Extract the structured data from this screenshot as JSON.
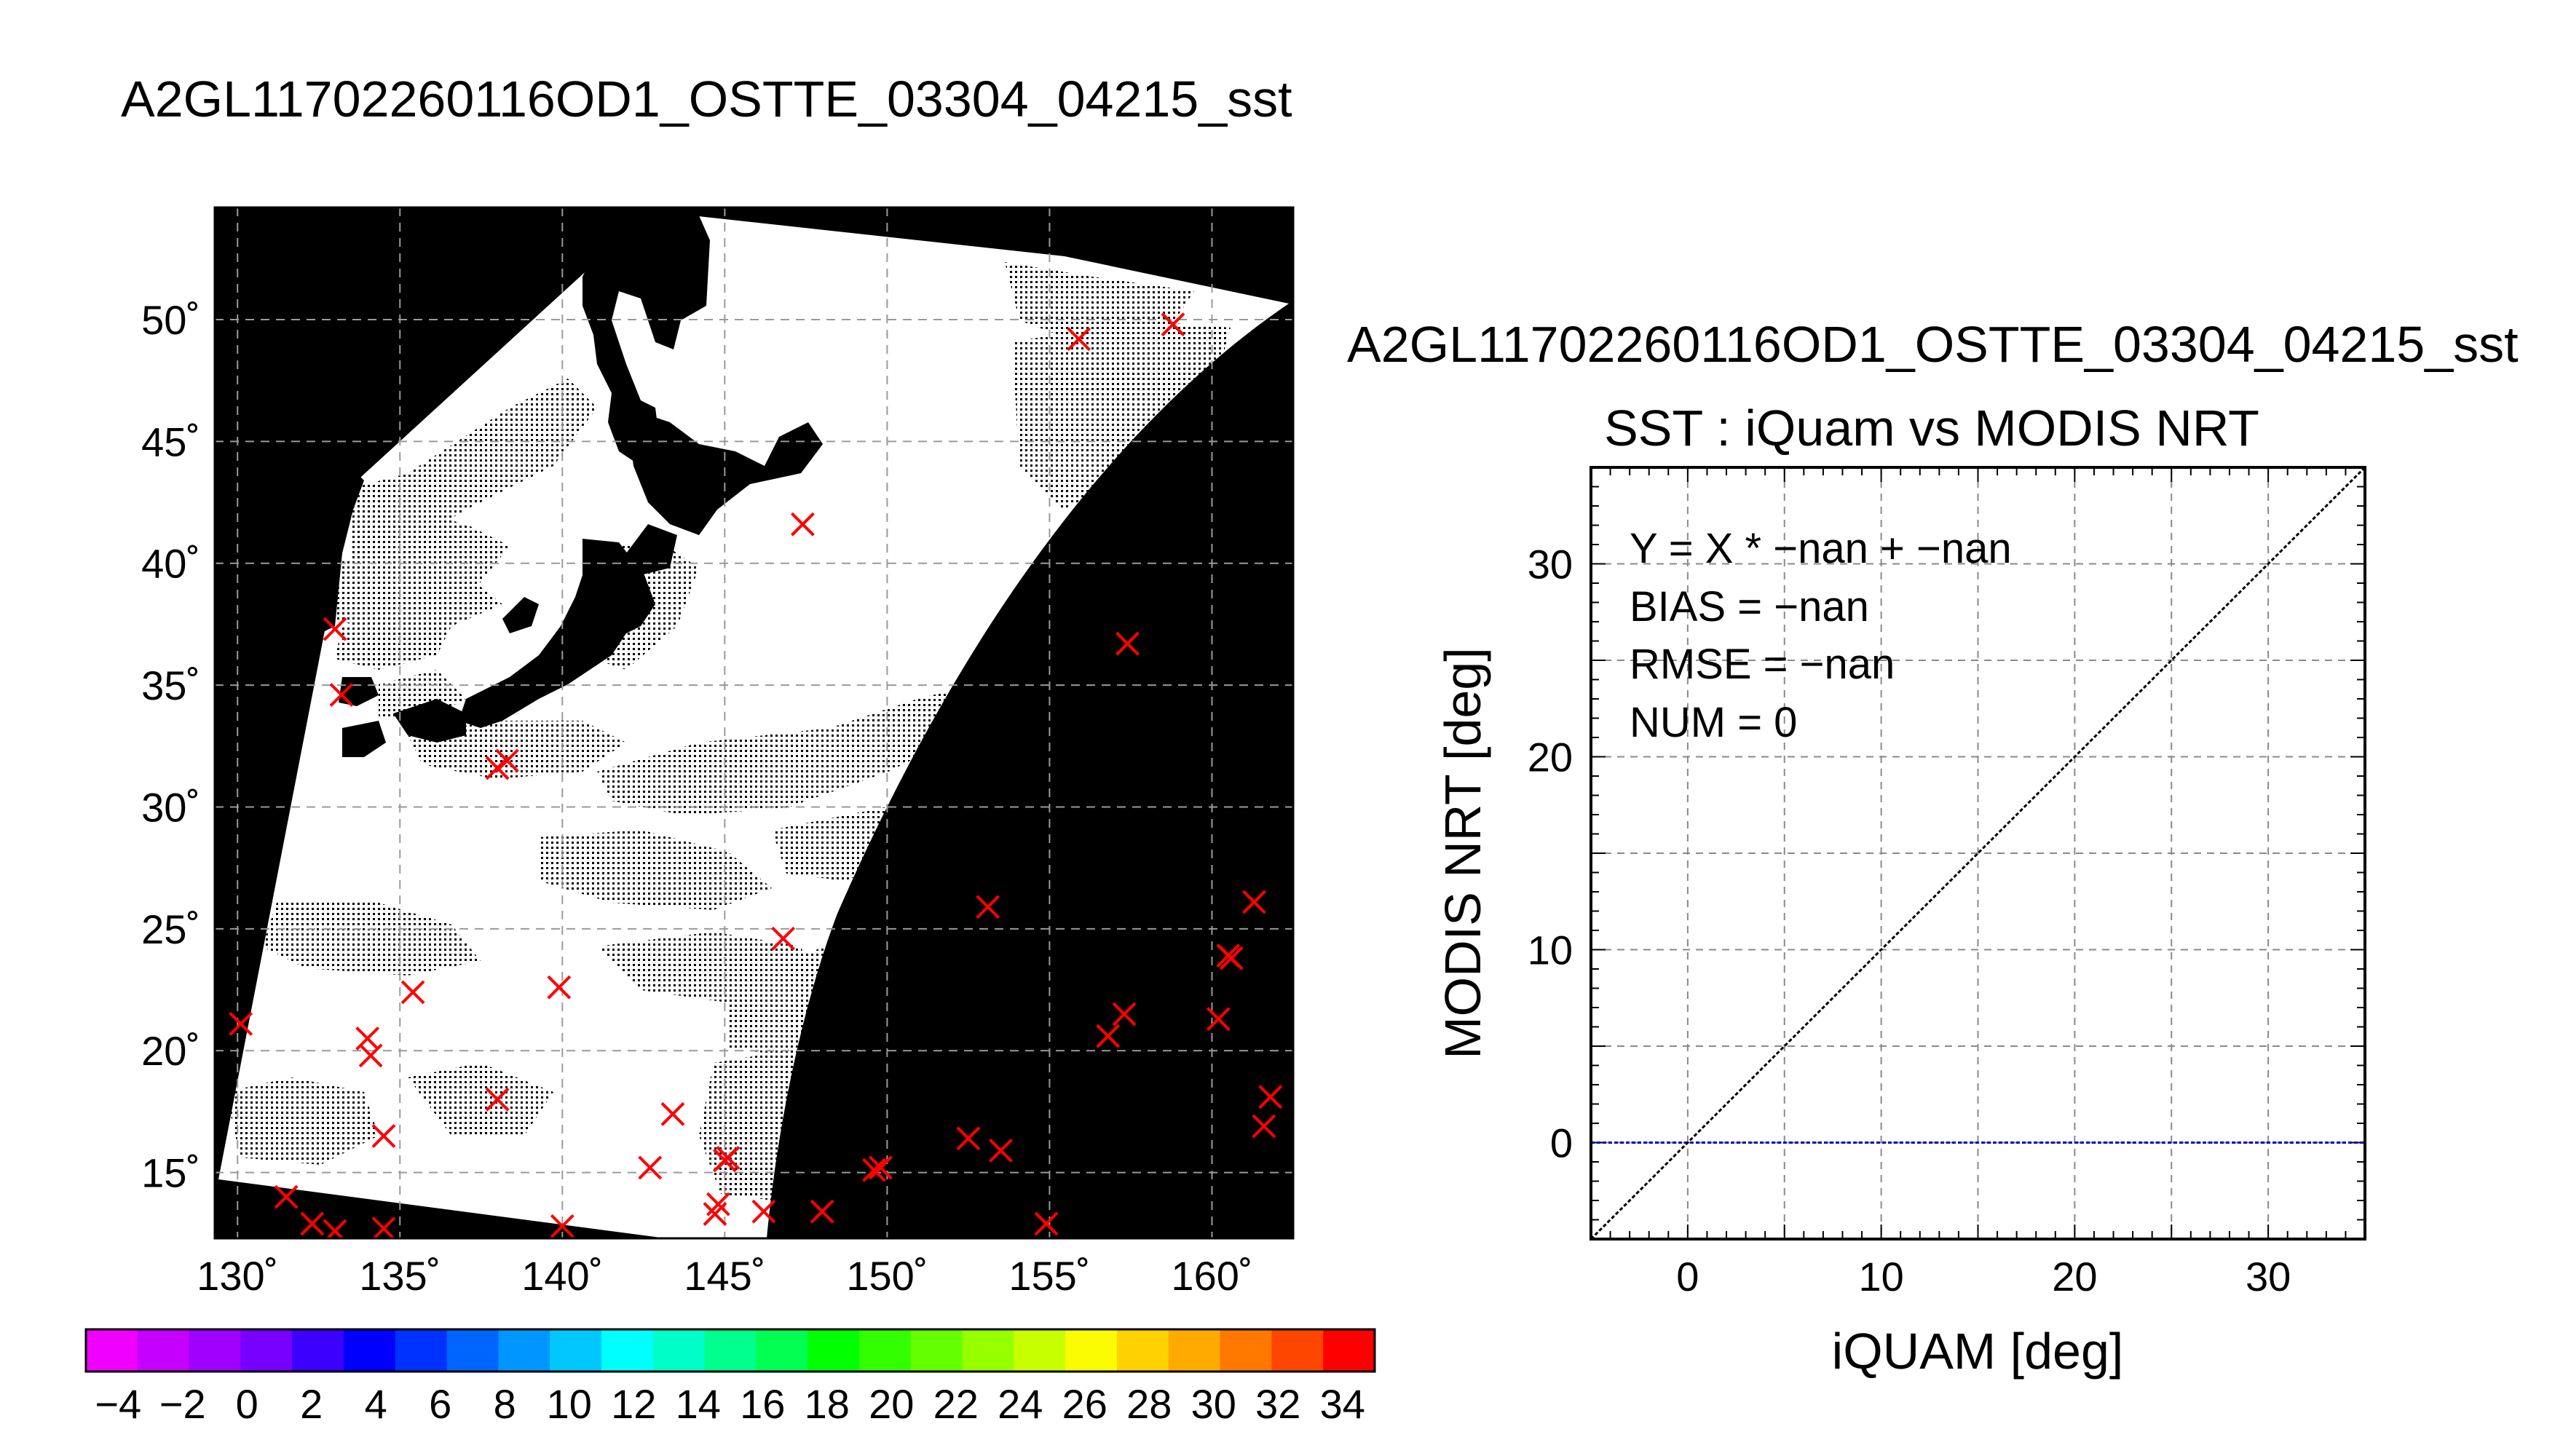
{
  "figure": {
    "title": "A2GL11702260116OD1_OSTTE_03304_04215_sst"
  },
  "chart_data": [
    {
      "type": "heatmap",
      "title": "A2GL11702260116OD1_OSTTE_03304_04215_sst",
      "x_ticks": [
        "130˚",
        "135˚",
        "140˚",
        "145˚",
        "150˚",
        "155˚",
        "160˚"
      ],
      "y_ticks": [
        "15˚",
        "20˚",
        "25˚",
        "30˚",
        "35˚",
        "40˚",
        "45˚",
        "50˚"
      ],
      "xlim": [
        129.3,
        162.5
      ],
      "ylim": [
        12.3,
        54.6
      ],
      "grid": true,
      "colorbar": {
        "ticks": [
          "−4",
          "−2",
          "0",
          "2",
          "4",
          "6",
          "8",
          "10",
          "12",
          "14",
          "16",
          "18",
          "20",
          "22",
          "24",
          "26",
          "28",
          "30",
          "32",
          "34"
        ],
        "range": [
          -5,
          35
        ],
        "colors": [
          "#f000ff",
          "#c600ff",
          "#a000ff",
          "#7800ff",
          "#3c00ff",
          "#0000ff",
          "#0032ff",
          "#0064ff",
          "#0096ff",
          "#00c8ff",
          "#00ffff",
          "#00ffc8",
          "#00ff8c",
          "#00ff50",
          "#00ff00",
          "#32ff00",
          "#64ff00",
          "#96ff00",
          "#c8ff00",
          "#fafa00",
          "#ffd200",
          "#ffaa00",
          "#ff7800",
          "#ff4600",
          "#ff0000"
        ]
      },
      "buoy_marks": [
        [
          130.1,
          21.1
        ],
        [
          131.5,
          14.0
        ],
        [
          132.3,
          12.9
        ],
        [
          133.0,
          12.6
        ],
        [
          133.0,
          37.3
        ],
        [
          133.2,
          34.6
        ],
        [
          134.0,
          20.5
        ],
        [
          134.1,
          19.8
        ],
        [
          134.5,
          12.7
        ],
        [
          134.5,
          16.5
        ],
        [
          135.4,
          22.4
        ],
        [
          138.0,
          18.0
        ],
        [
          138.0,
          31.6
        ],
        [
          138.3,
          31.9
        ],
        [
          139.9,
          22.6
        ],
        [
          140.0,
          12.8
        ],
        [
          142.7,
          15.2
        ],
        [
          143.4,
          17.4
        ],
        [
          144.7,
          13.3
        ],
        [
          144.8,
          13.7
        ],
        [
          145.0,
          15.5
        ],
        [
          145.1,
          15.6
        ],
        [
          146.2,
          13.4
        ],
        [
          146.8,
          24.6
        ],
        [
          147.4,
          41.6
        ],
        [
          148.0,
          13.4
        ],
        [
          149.6,
          15.1
        ],
        [
          149.8,
          15.2
        ],
        [
          152.5,
          16.4
        ],
        [
          153.1,
          25.9
        ],
        [
          153.5,
          15.9
        ],
        [
          154.9,
          12.9
        ],
        [
          155.9,
          49.2
        ],
        [
          156.8,
          20.6
        ],
        [
          157.3,
          21.5
        ],
        [
          157.4,
          36.7
        ],
        [
          158.8,
          49.8
        ],
        [
          160.2,
          21.3
        ],
        [
          160.5,
          23.9
        ],
        [
          160.6,
          23.8
        ],
        [
          161.3,
          26.1
        ],
        [
          161.6,
          16.9
        ],
        [
          161.8,
          18.1
        ]
      ]
    },
    {
      "type": "scatter",
      "title": "A2GL11702260116OD1_OSTTE_03304_04215_sst",
      "subtitle": "SST : iQuam vs MODIS NRT",
      "xlabel": "iQUAM [deg]",
      "ylabel": "MODIS NRT [deg]",
      "xlim": [
        -5,
        35
      ],
      "ylim": [
        -5,
        35
      ],
      "x_ticks": [
        0,
        10,
        20,
        30
      ],
      "y_ticks": [
        0,
        10,
        20,
        30
      ],
      "grid": true,
      "stats": [
        "Y = X * −nan + −nan",
        "BIAS = −nan",
        "RMSE = −nan",
        "NUM = 0"
      ],
      "points": [],
      "reference_line": "y = x",
      "zero_line_color": "#0000c8"
    }
  ]
}
